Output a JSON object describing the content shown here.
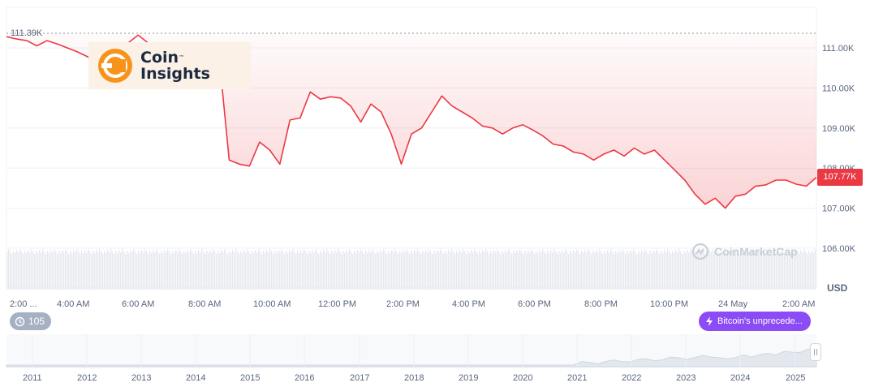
{
  "chart_data": {
    "type": "area",
    "unit": "USD",
    "y_ticks": [
      "111.00K",
      "110.00K",
      "109.00K",
      "108.00K",
      "107.00K",
      "106.00K"
    ],
    "ylim": [
      105.0,
      111.4
    ],
    "x_ticks": [
      "2:00 ...",
      "4:00 AM",
      "6:00 AM",
      "8:00 AM",
      "10:00 AM",
      "12:00 PM",
      "2:00 PM",
      "4:00 PM",
      "6:00 PM",
      "8:00 PM",
      "10:00 PM",
      "24 May",
      "2:00 AM"
    ],
    "high_label": "111.39K",
    "current_price": "107.77K",
    "series": [
      {
        "color": "#ea3943",
        "values": [
          111.28,
          111.22,
          111.18,
          111.05,
          111.18,
          111.1,
          111.0,
          110.9,
          110.78,
          110.62,
          110.72,
          110.95,
          111.12,
          111.32,
          111.12,
          110.95,
          110.9,
          111.0,
          111.02,
          110.9,
          110.85,
          110.78,
          108.2,
          108.1,
          108.05,
          108.65,
          108.45,
          108.1,
          109.2,
          109.25,
          109.9,
          109.72,
          109.78,
          109.75,
          109.55,
          109.15,
          109.6,
          109.4,
          108.85,
          108.1,
          108.85,
          109.0,
          109.4,
          109.8,
          109.55,
          109.4,
          109.25,
          109.05,
          109.0,
          108.85,
          109.0,
          109.08,
          108.95,
          108.8,
          108.6,
          108.55,
          108.4,
          108.35,
          108.2,
          108.35,
          108.45,
          108.3,
          108.5,
          108.35,
          108.45,
          108.2,
          107.95,
          107.7,
          107.35,
          107.1,
          107.25,
          107.0,
          107.3,
          107.35,
          107.55,
          107.58,
          107.7,
          107.7,
          107.6,
          107.55,
          107.77
        ]
      }
    ],
    "navigator_years": [
      "2011",
      "2012",
      "2013",
      "2014",
      "2015",
      "2016",
      "2017",
      "2018",
      "2019",
      "2020",
      "2021",
      "2022",
      "2023",
      "2024",
      "2025"
    ]
  },
  "logo": {
    "line1": "Coin",
    "tm": "™",
    "line2": "Insights"
  },
  "badges": {
    "count": "105",
    "news": "Bitcoin's unprecede..."
  },
  "watermark": "CoinMarketCap",
  "colors": {
    "line": "#ea3943",
    "news": "#8c4cf5",
    "count": "#a6b0c3",
    "logo_orange": "#f7931a"
  }
}
